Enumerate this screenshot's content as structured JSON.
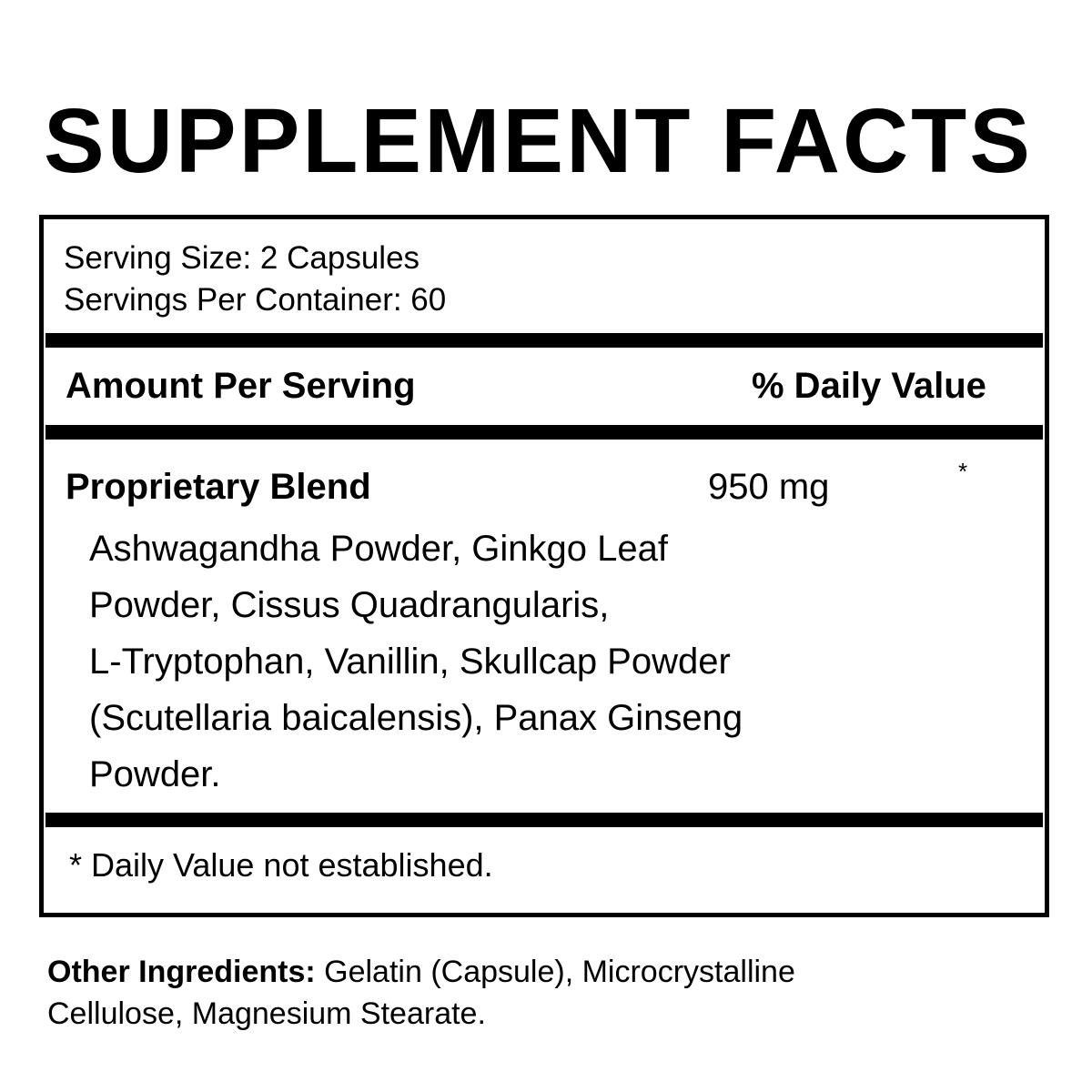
{
  "title": "SUPPLEMENT FACTS",
  "serving": {
    "size": "Serving Size: 2 Capsules",
    "per_container": "Servings Per Container: 60"
  },
  "header": {
    "amount": "Amount Per Serving",
    "daily_value": "% Daily Value"
  },
  "blend": {
    "name": "Proprietary Blend",
    "amount": "950 mg",
    "dv": "*",
    "ingredients_lines": [
      "Ashwagandha Powder, Ginkgo Leaf",
      "Powder, Cissus Quadrangularis,",
      "L-Tryptophan, Vanillin, Skullcap Powder",
      "(Scutellaria baicalensis), Panax Ginseng",
      "Powder."
    ]
  },
  "footnote": "* Daily Value not established.",
  "other": {
    "label": "Other Ingredients:",
    "line1": " Gelatin (Capsule), Microcrystalline",
    "line2": "Cellulose, Magnesium Stearate."
  }
}
